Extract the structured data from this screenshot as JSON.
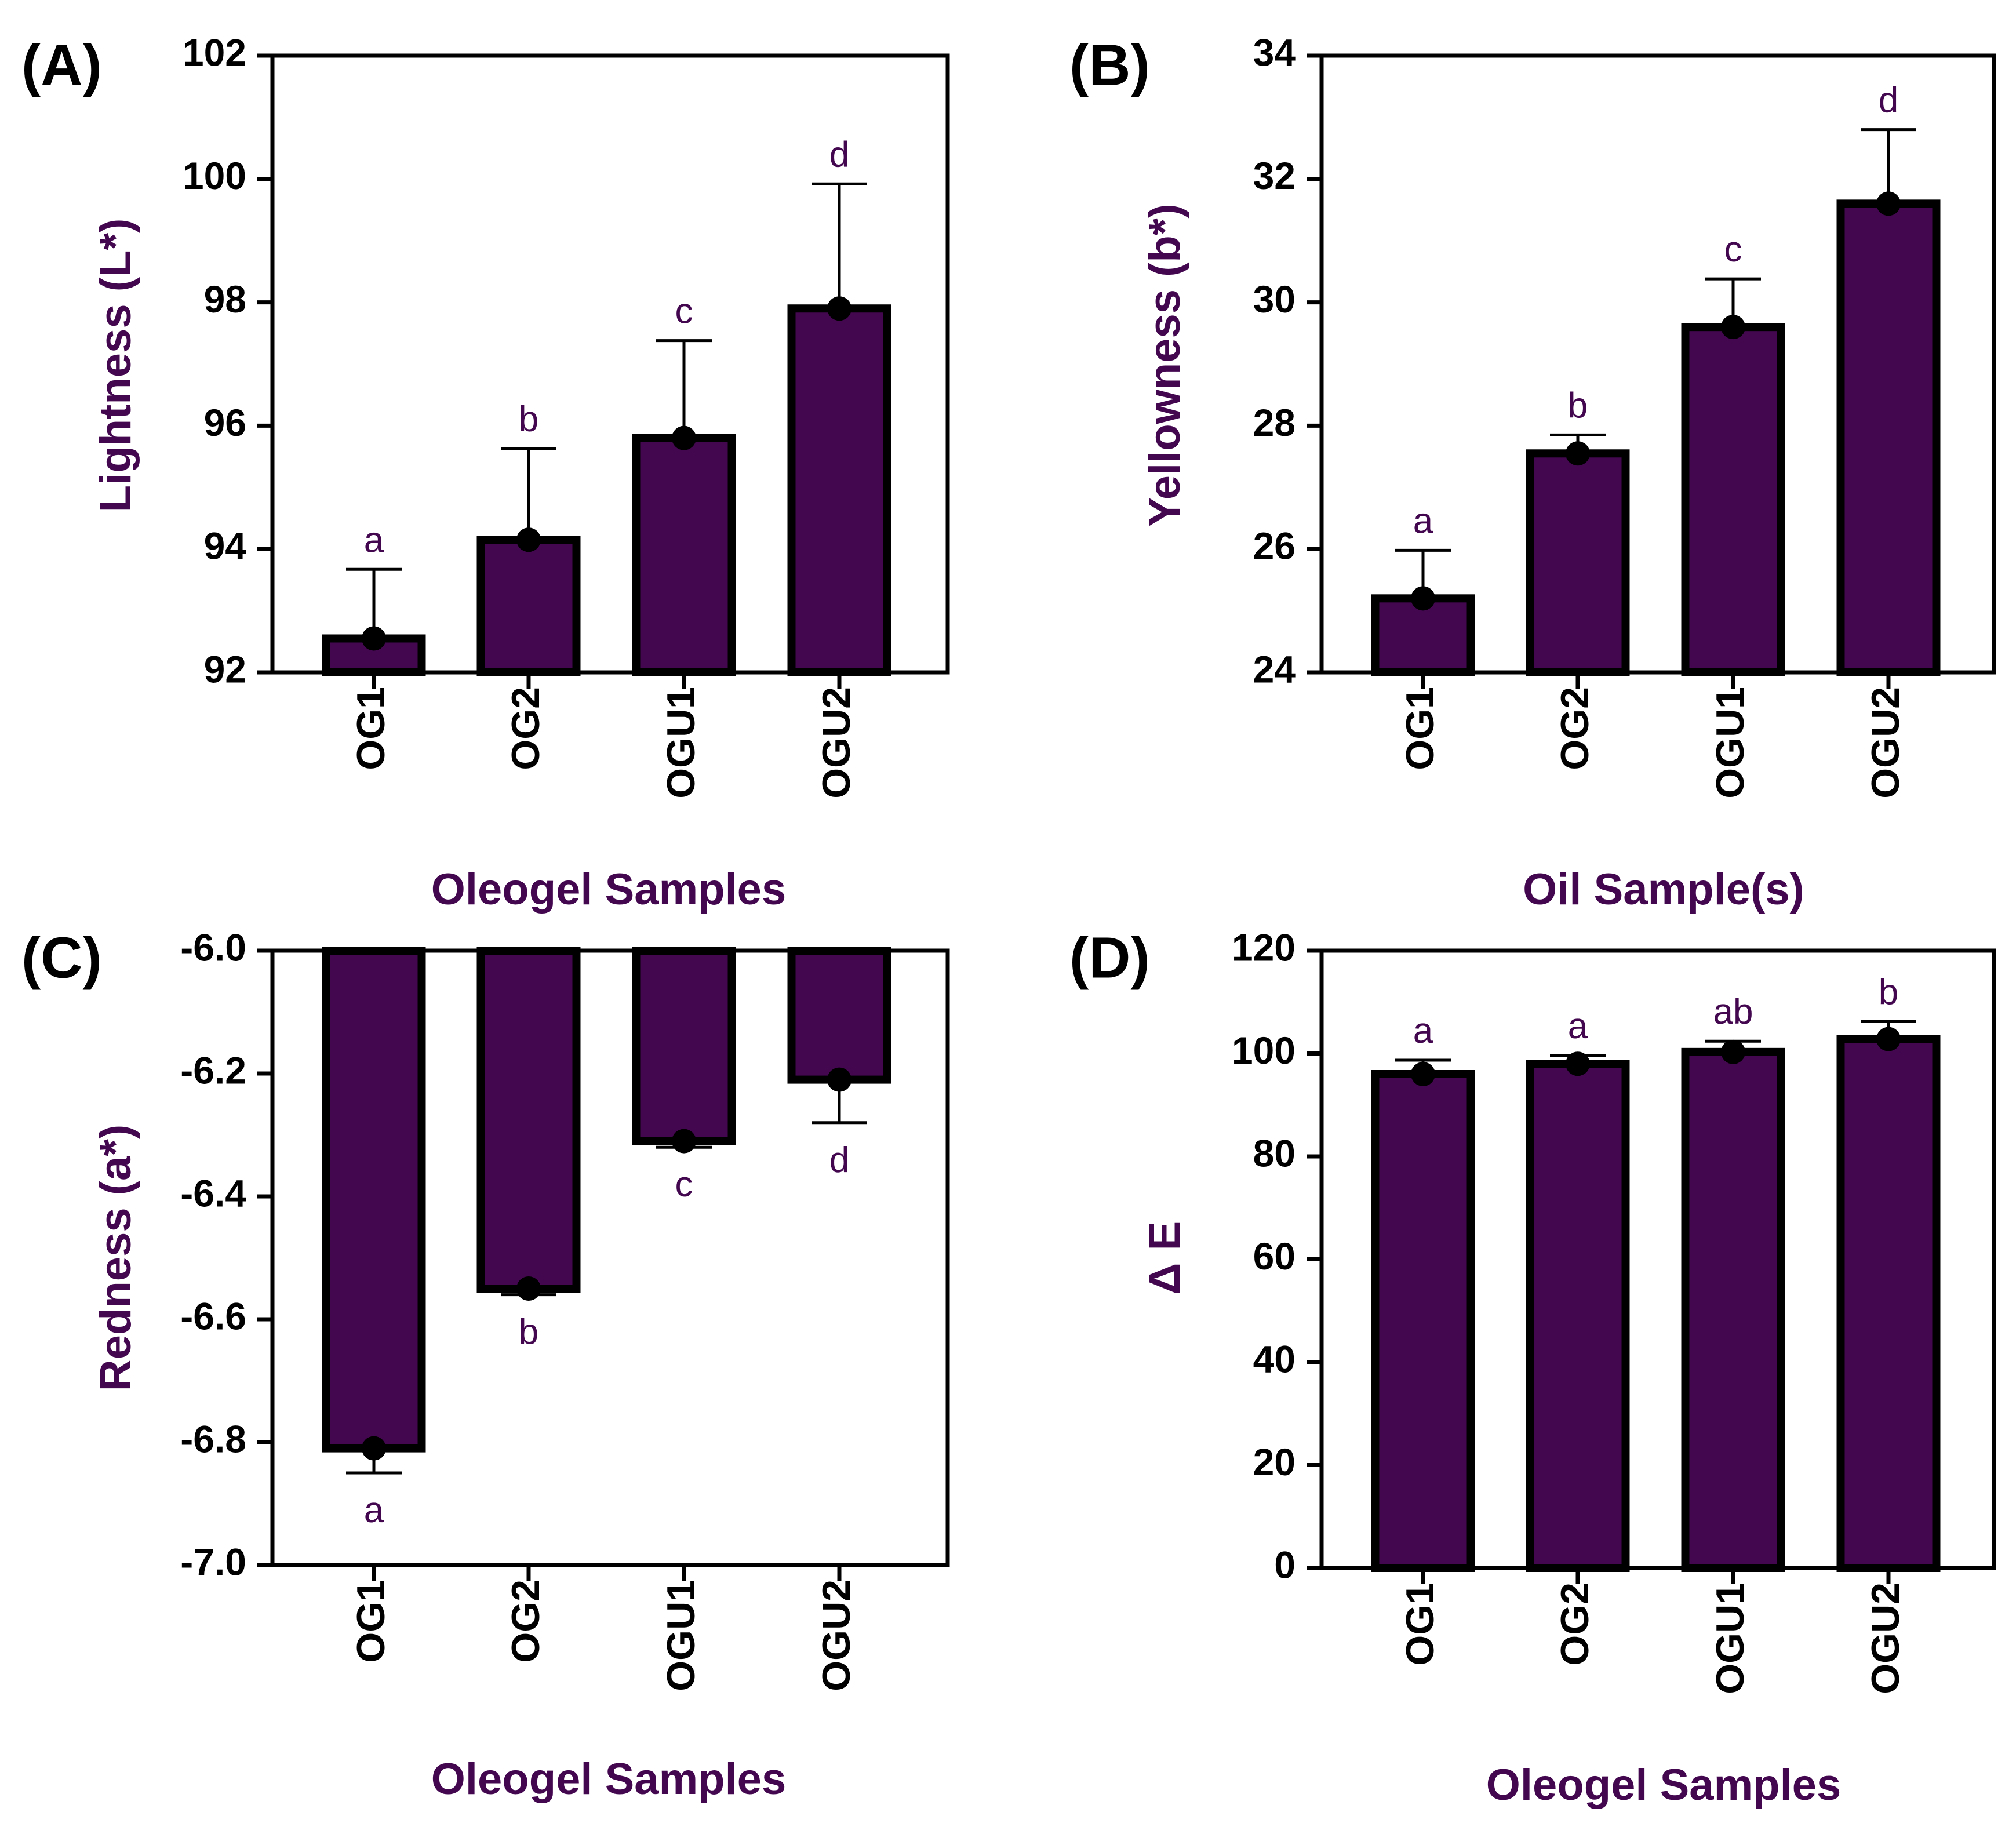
{
  "colors": {
    "bar": "#430750",
    "bar_edge": "#000000",
    "axis": "#000000",
    "label_text": "#430750",
    "letter_text": "#430750",
    "tick_text": "#000000"
  },
  "chart_data": [
    {
      "panel": "(A)",
      "type": "bar",
      "categories": [
        "OG1",
        "OG2",
        "OGU1",
        "OGU2"
      ],
      "values": [
        92.55,
        94.15,
        95.8,
        97.9
      ],
      "error_upper": [
        93.67,
        95.63,
        97.38,
        99.92
      ],
      "letters": [
        "a",
        "b",
        "c",
        "d"
      ],
      "ylabel": "Lightness (L*)",
      "xlabel": "Oleogel Samples",
      "ylim": [
        92,
        102
      ],
      "yticks": [
        92,
        94,
        96,
        98,
        100,
        102
      ],
      "ytick_labels": [
        "92",
        "94",
        "96",
        "98",
        "100",
        "102"
      ]
    },
    {
      "panel": "(B)",
      "type": "bar",
      "categories": [
        "OG1",
        "OG2",
        "OGU1",
        "OGU2"
      ],
      "values": [
        25.2,
        27.55,
        29.6,
        31.6
      ],
      "error_upper": [
        25.98,
        27.85,
        30.38,
        32.8
      ],
      "letters": [
        "a",
        "b",
        "c",
        "d"
      ],
      "ylabel": "Yellowness (b*)",
      "xlabel": "Oil Sample(s)",
      "ylim": [
        24,
        34
      ],
      "yticks": [
        24,
        26,
        28,
        30,
        32,
        34
      ],
      "ytick_labels": [
        "24",
        "26",
        "28",
        "30",
        "32",
        "34"
      ]
    },
    {
      "panel": "(C)",
      "type": "bar",
      "categories": [
        "OG1",
        "OG2",
        "OGU1",
        "OGU2"
      ],
      "values": [
        -6.81,
        -6.55,
        -6.31,
        -6.21
      ],
      "error_lower": [
        -6.85,
        -6.56,
        -6.32,
        -6.28
      ],
      "letters": [
        "a",
        "b",
        "c",
        "d"
      ],
      "ylabel": "Redness (a*)",
      "xlabel": "Oleogel Samples",
      "ylim": [
        -7.0,
        -6.0
      ],
      "yticks": [
        -7.0,
        -6.8,
        -6.6,
        -6.4,
        -6.2,
        -6.0
      ],
      "ytick_labels": [
        "-7.0",
        "-6.8",
        "-6.6",
        "-6.4",
        "-6.2",
        "-6.0"
      ]
    },
    {
      "panel": "(D)",
      "type": "bar",
      "categories": [
        "OG1",
        "OG2",
        "OGU1",
        "OGU2"
      ],
      "values": [
        96,
        98,
        100.3,
        102.8
      ],
      "error_upper": [
        98.7,
        99.6,
        102.4,
        106.2
      ],
      "letters": [
        "a",
        "a",
        "ab",
        "b"
      ],
      "ylabel": "Δ E",
      "xlabel": "Oleogel Samples",
      "ylim": [
        0,
        120
      ],
      "yticks": [
        0,
        20,
        40,
        60,
        80,
        100,
        120
      ],
      "ytick_labels": [
        "0",
        "20",
        "40",
        "60",
        "80",
        "100",
        "120"
      ]
    }
  ]
}
